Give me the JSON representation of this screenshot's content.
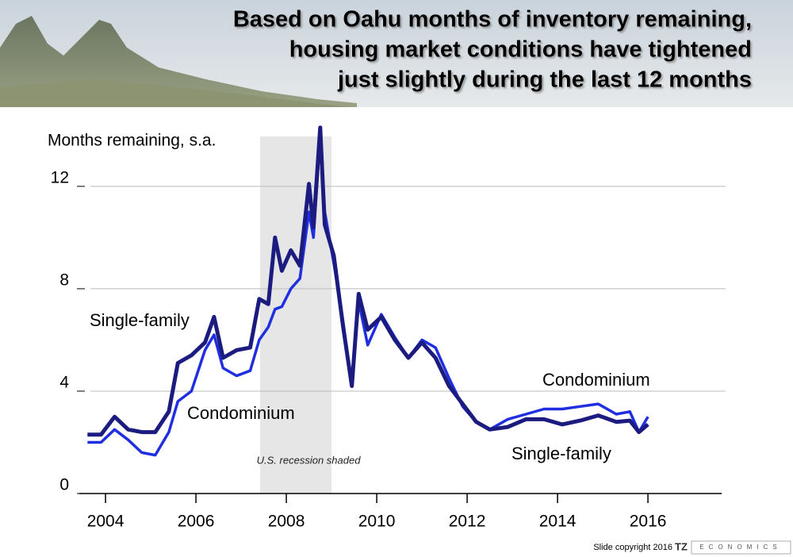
{
  "chart_data": {
    "type": "line",
    "title": [
      "Based on Oahu months of inventory remaining,",
      "housing market conditions have tightened",
      "just slightly during the last 12 months"
    ],
    "y_label": "Months remaining, s.a.",
    "shaded": {
      "x": [
        2007.92,
        2009.5
      ],
      "label": "U.S. recession shaded"
    },
    "x": [
      2004.1,
      2004.4,
      2004.7,
      2005.0,
      2005.3,
      2005.6,
      2005.9,
      2006.1,
      2006.4,
      2006.7,
      2006.9,
      2007.1,
      2007.4,
      2007.7,
      2007.9,
      2008.1,
      2008.25,
      2008.4,
      2008.6,
      2008.8,
      2009.0,
      2009.1,
      2009.25,
      2009.35,
      2009.55,
      2009.75,
      2009.95,
      2010.1,
      2010.3,
      2010.6,
      2010.9,
      2011.2,
      2011.5,
      2011.8,
      2012.1,
      2012.4,
      2012.7,
      2013.0,
      2013.4,
      2013.8,
      2014.2,
      2014.6,
      2015.0,
      2015.4,
      2015.8,
      2016.1,
      2016.3,
      2016.5
    ],
    "series": [
      {
        "name": "Single-family",
        "color": "#1c1c80",
        "values": [
          2.3,
          2.3,
          3.0,
          2.5,
          2.4,
          2.4,
          3.2,
          5.1,
          5.4,
          5.9,
          6.9,
          5.3,
          5.6,
          5.7,
          7.6,
          7.4,
          10.0,
          8.7,
          9.5,
          8.9,
          12.1,
          10.4,
          14.3,
          10.5,
          9.3,
          6.6,
          4.2,
          7.8,
          6.4,
          6.9,
          6.0,
          5.3,
          5.9,
          5.3,
          4.2,
          3.5,
          2.8,
          2.5,
          2.6,
          2.9,
          2.9,
          2.7,
          2.85,
          3.05,
          2.8,
          2.85,
          2.4,
          2.7
        ]
      },
      {
        "name": "Condominium",
        "color": "#1f2fe0",
        "values": [
          2.0,
          2.0,
          2.5,
          2.1,
          1.6,
          1.5,
          2.4,
          3.6,
          4.0,
          5.6,
          6.2,
          4.9,
          4.6,
          4.8,
          6.0,
          6.5,
          7.2,
          7.3,
          8.0,
          8.4,
          11.0,
          10.0,
          14.0,
          11.0,
          9.0,
          6.8,
          4.2,
          7.5,
          5.8,
          7.0,
          6.1,
          5.3,
          6.0,
          5.7,
          4.5,
          3.4,
          2.8,
          2.5,
          2.9,
          3.1,
          3.3,
          3.3,
          3.4,
          3.5,
          3.1,
          3.2,
          2.4,
          3.0
        ]
      }
    ],
    "xlim": [
      2003.92,
      2018.13
    ],
    "xticks": [
      {
        "value": 2004.5,
        "label": "2004"
      },
      {
        "value": 2006.5,
        "label": "2006"
      },
      {
        "value": 2008.5,
        "label": "2008"
      },
      {
        "value": 2010.5,
        "label": "2010"
      },
      {
        "value": 2012.5,
        "label": "2012"
      },
      {
        "value": 2014.5,
        "label": "2014"
      },
      {
        "value": 2016.5,
        "label": "2016"
      }
    ],
    "ylim": [
      0,
      14.6
    ],
    "yticks": [
      0,
      4,
      8,
      12
    ],
    "grid": true,
    "footer": "Slide copyright 2016",
    "logo": "TZ",
    "logo_sub": "ECONOMICS"
  }
}
